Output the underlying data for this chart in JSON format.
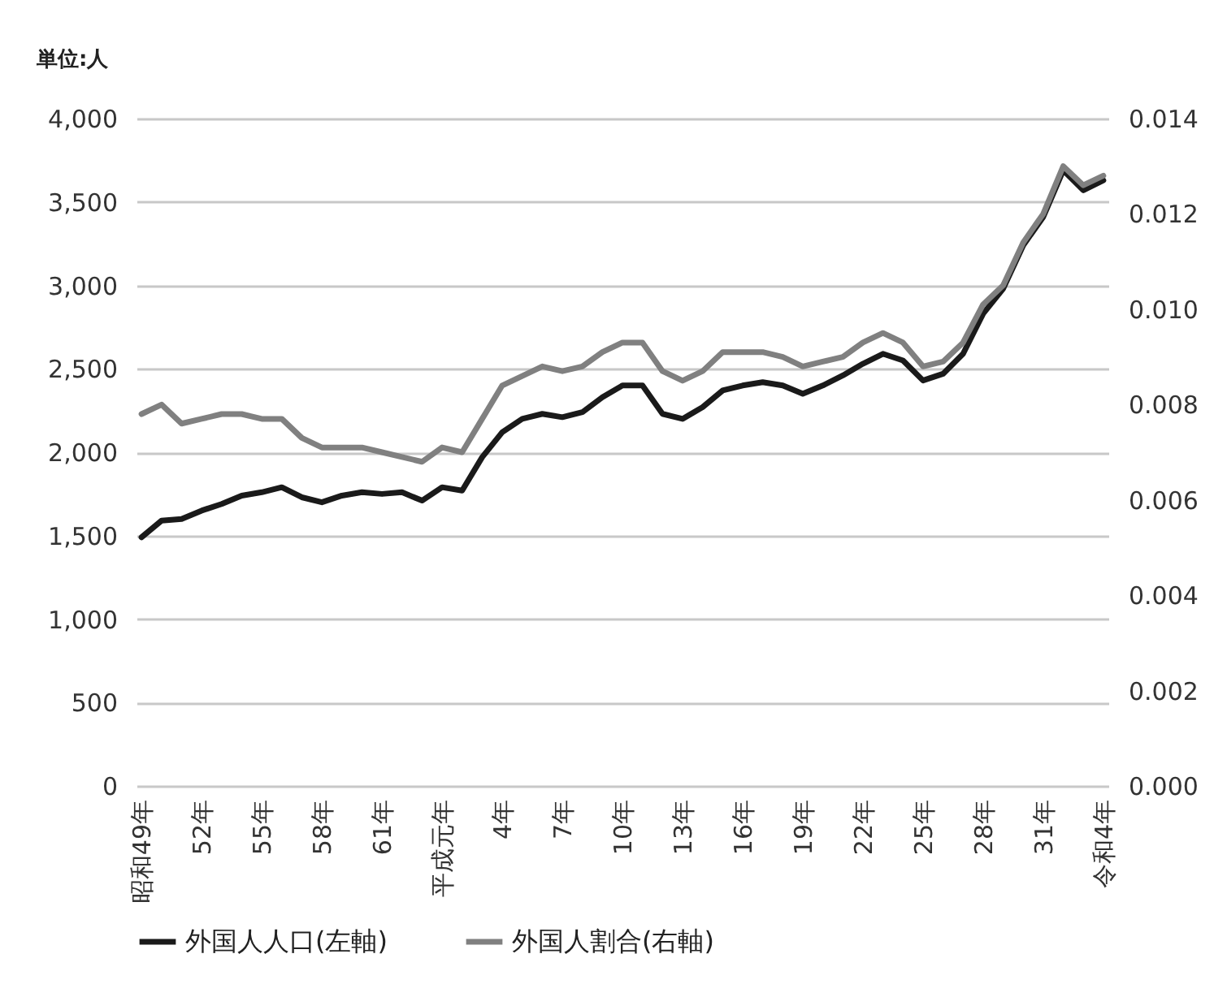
{
  "chart_data": {
    "type": "line",
    "ylabel": "単位:人",
    "categories": [
      "昭和49年",
      null,
      null,
      "52年",
      null,
      null,
      "55年",
      null,
      null,
      "58年",
      null,
      null,
      "61年",
      null,
      null,
      "平成元年",
      null,
      null,
      "4年",
      null,
      null,
      "7年",
      null,
      null,
      "10年",
      null,
      null,
      "13年",
      null,
      null,
      "16年",
      null,
      null,
      "19年",
      null,
      null,
      "22年",
      null,
      null,
      "25年",
      null,
      null,
      "28年",
      null,
      null,
      "31年",
      null,
      null,
      "令和4年"
    ],
    "series": [
      {
        "name": "外国人人口(左軸)",
        "color": "#1a1a1a",
        "values": [
          1490,
          1590,
          1600,
          1650,
          1690,
          1740,
          1760,
          1790,
          1730,
          1700,
          1740,
          1760,
          1750,
          1760,
          1710,
          1790,
          1770,
          1970,
          2120,
          2200,
          2230,
          2210,
          2240,
          2330,
          2400,
          2400,
          2230,
          2200,
          2270,
          2370,
          2400,
          2420,
          2400,
          2350,
          2400,
          2460,
          2530,
          2590,
          2550,
          2430,
          2470,
          2590,
          2830,
          2980,
          3240,
          3410,
          3690,
          3570,
          3630
        ]
      },
      {
        "name": "外国人割合(右軸)",
        "color": "#808080",
        "axis": "y2",
        "values": [
          0.0078,
          0.008,
          0.0076,
          0.0077,
          0.0078,
          0.0078,
          0.0077,
          0.0077,
          0.0073,
          0.0071,
          0.0071,
          0.0071,
          0.007,
          0.0069,
          0.0068,
          0.0071,
          0.007,
          0.0077,
          0.0084,
          0.0086,
          0.0088,
          0.0087,
          0.0088,
          0.0091,
          0.0093,
          0.0093,
          0.0087,
          0.0085,
          0.0087,
          0.0091,
          0.0091,
          0.0091,
          0.009,
          0.0088,
          0.0089,
          0.009,
          0.0093,
          0.0095,
          0.0093,
          0.0088,
          0.0089,
          0.0093,
          0.0101,
          0.0105,
          0.0114,
          0.012,
          0.013,
          0.0126,
          0.0128
        ]
      }
    ],
    "ylim": [
      0,
      4000
    ],
    "yticks": [
      {
        "value": 0,
        "label": "0"
      },
      {
        "value": 500,
        "label": "500"
      },
      {
        "value": 1000,
        "label": "1,000"
      },
      {
        "value": 1500,
        "label": "1,500"
      },
      {
        "value": 2000,
        "label": "2,000"
      },
      {
        "value": 2500,
        "label": "2,500"
      },
      {
        "value": 3000,
        "label": "3,000"
      },
      {
        "value": 3500,
        "label": "3,500"
      },
      {
        "value": 4000,
        "label": "4,000"
      }
    ],
    "y2lim": [
      0,
      0.014
    ],
    "y2ticks": [
      {
        "value": 0,
        "label": "0.000"
      },
      {
        "value": 0.002,
        "label": "0.002"
      },
      {
        "value": 0.004,
        "label": "0.004"
      },
      {
        "value": 0.006,
        "label": "0.006"
      },
      {
        "value": 0.008,
        "label": "0.008"
      },
      {
        "value": 0.01,
        "label": "0.010"
      },
      {
        "value": 0.012,
        "label": "0.012"
      },
      {
        "value": 0.014,
        "label": "0.014"
      }
    ],
    "grid": "y",
    "legend": "bottom",
    "line_style": "solid"
  }
}
